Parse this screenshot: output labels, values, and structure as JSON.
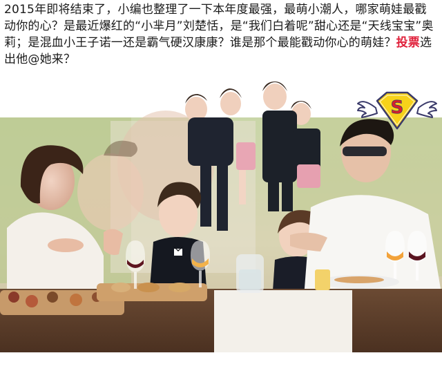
{
  "caption": {
    "lead": "2015年即将结束了，小编也整理了一下本年度最强，最萌小潮人，哪家萌娃最戳动你的心？是最近爆红的“小芈月”刘楚恬，是“我们白着呢”甜心还是“天线宝宝”奥莉；是混血小王子诺一还是霸气硬汉康康？谁是那个最能戳动你心的萌娃？",
    "vote": "投票",
    "tail": "选出他@她来？"
  },
  "badge": {
    "letter": "S",
    "icon": "superman-winged-badge-icon",
    "colors": {
      "shield": "#f7d21a",
      "letter": "#d9202a",
      "wing": "#ffffff",
      "outline": "#3a3a6a"
    }
  },
  "colors": {
    "highlight": "#e0203a",
    "text": "#1a1a1a"
  }
}
